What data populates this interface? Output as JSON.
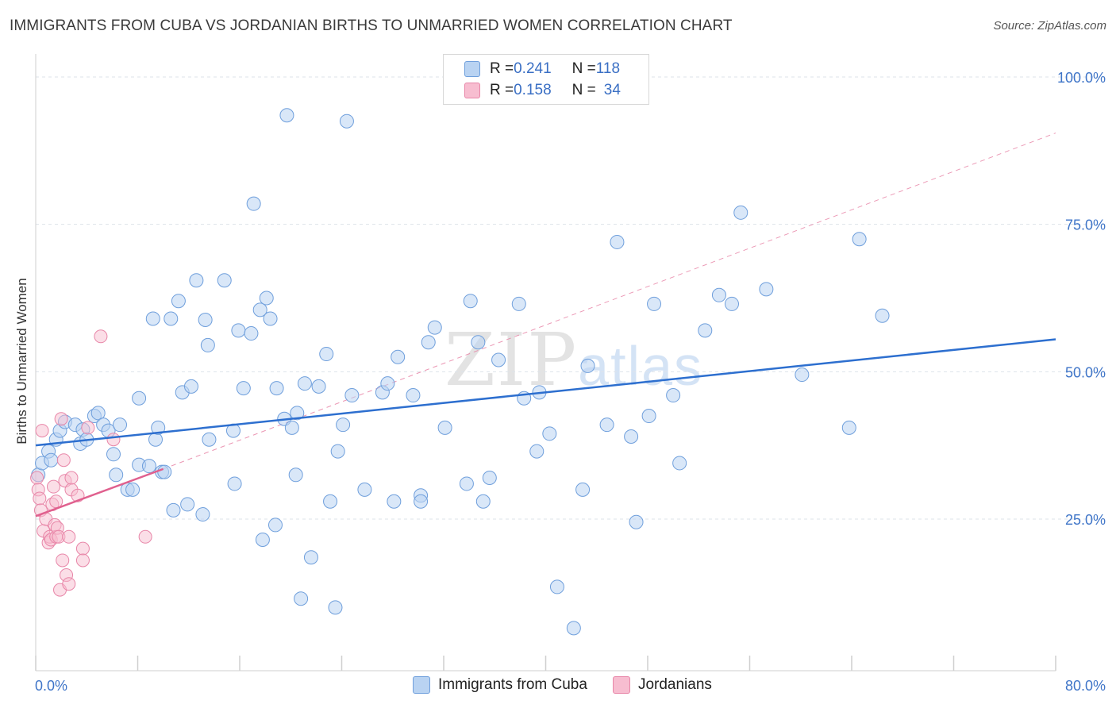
{
  "title": "IMMIGRANTS FROM CUBA VS JORDANIAN BIRTHS TO UNMARRIED WOMEN CORRELATION CHART",
  "source": "Source: ZipAtlas.com",
  "watermark": {
    "zip": "ZIP",
    "atlas": "atlas"
  },
  "legend_top": {
    "rows": [
      {
        "r_label": "R = ",
        "r_value": "0.241",
        "n_label": "N = ",
        "n_value": "118"
      },
      {
        "r_label": "R = ",
        "r_value": "0.158",
        "n_label": "N = ",
        "n_value": "34"
      }
    ]
  },
  "colors": {
    "cuba_fill": "#b9d3f2",
    "cuba_stroke": "#6f9fdc",
    "cuba_line": "#2d6fcf",
    "jordan_fill": "#f7bdd0",
    "jordan_stroke": "#e886a8",
    "jordan_line": "#e0608e",
    "grid": "#dde3ea",
    "axis_text": "#3f75c8"
  },
  "chart_data": {
    "type": "scatter",
    "title": "IMMIGRANTS FROM CUBA VS JORDANIAN BIRTHS TO UNMARRIED WOMEN CORRELATION CHART",
    "xlabel": "",
    "ylabel": "Births to Unmarried Women",
    "xlim": [
      0,
      80
    ],
    "ylim": [
      0,
      100
    ],
    "x_tick_labels": [
      "0.0%",
      "80.0%"
    ],
    "y_tick_labels": [
      "100.0%",
      "75.0%",
      "50.0%",
      "25.0%"
    ],
    "y_ticks": [
      100,
      75,
      50,
      25
    ],
    "legend_position": "bottom-center",
    "series": [
      {
        "name": "Immigrants from Cuba",
        "r": 0.241,
        "n": 118,
        "trend": {
          "x": [
            0,
            80
          ],
          "y": [
            37.5,
            55.5
          ]
        },
        "points": [
          [
            0.2,
            32.5
          ],
          [
            0.5,
            34.5
          ],
          [
            1.0,
            36.5
          ],
          [
            1.2,
            35
          ],
          [
            1.6,
            38.5
          ],
          [
            1.9,
            40
          ],
          [
            2.3,
            41.5
          ],
          [
            3.1,
            41
          ],
          [
            3.5,
            37.8
          ],
          [
            3.7,
            40.2
          ],
          [
            4.0,
            38.5
          ],
          [
            4.6,
            42.5
          ],
          [
            4.9,
            43
          ],
          [
            5.3,
            41
          ],
          [
            5.7,
            40
          ],
          [
            6.1,
            36
          ],
          [
            6.3,
            32.5
          ],
          [
            6.6,
            41
          ],
          [
            7.2,
            30
          ],
          [
            7.6,
            30
          ],
          [
            8.1,
            34.2
          ],
          [
            8.1,
            45.5
          ],
          [
            8.9,
            34
          ],
          [
            9.2,
            59
          ],
          [
            9.4,
            38.5
          ],
          [
            9.6,
            40.5
          ],
          [
            9.9,
            33
          ],
          [
            10.1,
            33
          ],
          [
            10.6,
            59
          ],
          [
            10.8,
            26.5
          ],
          [
            11.2,
            62
          ],
          [
            11.5,
            46.5
          ],
          [
            11.9,
            27.5
          ],
          [
            12.2,
            47.5
          ],
          [
            12.6,
            65.5
          ],
          [
            13.1,
            25.8
          ],
          [
            13.3,
            58.8
          ],
          [
            13.5,
            54.5
          ],
          [
            13.6,
            38.5
          ],
          [
            14.8,
            65.5
          ],
          [
            15.5,
            40
          ],
          [
            15.6,
            31
          ],
          [
            15.9,
            57
          ],
          [
            16.3,
            47.2
          ],
          [
            16.9,
            56.5
          ],
          [
            17.1,
            78.5
          ],
          [
            17.6,
            60.5
          ],
          [
            17.8,
            21.5
          ],
          [
            18.1,
            62.5
          ],
          [
            18.4,
            59
          ],
          [
            18.8,
            24
          ],
          [
            18.9,
            47.2
          ],
          [
            19.5,
            42
          ],
          [
            19.7,
            93.5
          ],
          [
            20.1,
            40.5
          ],
          [
            20.4,
            32.5
          ],
          [
            20.5,
            43
          ],
          [
            20.8,
            11.5
          ],
          [
            21.1,
            48
          ],
          [
            21.6,
            18.5
          ],
          [
            22.2,
            47.5
          ],
          [
            22.8,
            53
          ],
          [
            23.1,
            28
          ],
          [
            23.5,
            10
          ],
          [
            23.7,
            36.5
          ],
          [
            24.1,
            41
          ],
          [
            24.4,
            92.5
          ],
          [
            24.8,
            46
          ],
          [
            25.8,
            30
          ],
          [
            27.2,
            46.5
          ],
          [
            27.6,
            48
          ],
          [
            28.1,
            28
          ],
          [
            28.4,
            52.5
          ],
          [
            29.6,
            46
          ],
          [
            30.2,
            29
          ],
          [
            30.2,
            28
          ],
          [
            30.8,
            55
          ],
          [
            31.3,
            57.5
          ],
          [
            32.1,
            40.5
          ],
          [
            33.8,
            31
          ],
          [
            34.1,
            62
          ],
          [
            34.7,
            55
          ],
          [
            35.1,
            28
          ],
          [
            35.6,
            32
          ],
          [
            36.3,
            52
          ],
          [
            37.9,
            61.5
          ],
          [
            38.3,
            45.5
          ],
          [
            39.3,
            36.5
          ],
          [
            39.5,
            46.5
          ],
          [
            40.3,
            39.5
          ],
          [
            40.9,
            13.5
          ],
          [
            42.2,
            6.5
          ],
          [
            42.9,
            30
          ],
          [
            43.3,
            51
          ],
          [
            44.8,
            41
          ],
          [
            45.6,
            72
          ],
          [
            46.7,
            39
          ],
          [
            47.1,
            24.5
          ],
          [
            48.1,
            42.5
          ],
          [
            48.5,
            61.5
          ],
          [
            50.0,
            46
          ],
          [
            50.5,
            34.5
          ],
          [
            52.5,
            57
          ],
          [
            53.6,
            63
          ],
          [
            54.6,
            61.5
          ],
          [
            55.3,
            77
          ],
          [
            57.3,
            64
          ],
          [
            60.1,
            49.5
          ],
          [
            63.8,
            40.5
          ],
          [
            64.6,
            72.5
          ],
          [
            66.4,
            59.5
          ]
        ]
      },
      {
        "name": "Jordanians",
        "r": 0.158,
        "n": 34,
        "trend": {
          "x": [
            0,
            10
          ],
          "y": [
            25.5,
            33.5
          ]
        },
        "trend_dashed": {
          "x": [
            10,
            80
          ],
          "y": [
            33.5,
            90.5
          ]
        },
        "points": [
          [
            0.1,
            32
          ],
          [
            0.2,
            30
          ],
          [
            0.3,
            28.5
          ],
          [
            0.4,
            26.5
          ],
          [
            0.5,
            40
          ],
          [
            0.6,
            23
          ],
          [
            0.8,
            25
          ],
          [
            1.0,
            21
          ],
          [
            1.1,
            22
          ],
          [
            1.2,
            21.5
          ],
          [
            1.3,
            27.5
          ],
          [
            1.4,
            30.5
          ],
          [
            1.5,
            24
          ],
          [
            1.6,
            28
          ],
          [
            1.6,
            22
          ],
          [
            1.7,
            23.5
          ],
          [
            1.8,
            22
          ],
          [
            1.9,
            13
          ],
          [
            2.0,
            42
          ],
          [
            2.1,
            18
          ],
          [
            2.2,
            35
          ],
          [
            2.3,
            31.5
          ],
          [
            2.4,
            15.5
          ],
          [
            2.6,
            14
          ],
          [
            2.6,
            22
          ],
          [
            2.8,
            30
          ],
          [
            2.8,
            32
          ],
          [
            3.3,
            29
          ],
          [
            3.7,
            20
          ],
          [
            3.7,
            18
          ],
          [
            4.1,
            40.5
          ],
          [
            5.1,
            56
          ],
          [
            6.1,
            38.5
          ],
          [
            8.6,
            22
          ]
        ]
      }
    ]
  },
  "bottom_legend": [
    {
      "label": "Immigrants from Cuba"
    },
    {
      "label": "Jordanians"
    }
  ]
}
